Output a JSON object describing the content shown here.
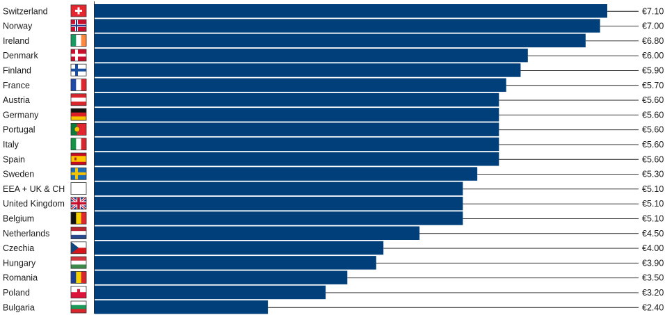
{
  "chart_data": {
    "type": "bar",
    "orientation": "horizontal",
    "categories": [
      "Switzerland",
      "Norway",
      "Ireland",
      "Denmark",
      "Finland",
      "France",
      "Austria",
      "Germany",
      "Portugal",
      "Italy",
      "Spain",
      "Sweden",
      "EEA + UK & CH",
      "United Kingdom",
      "Belgium",
      "Netherlands",
      "Czechia",
      "Hungary",
      "Romania",
      "Poland",
      "Bulgaria"
    ],
    "values": [
      7.1,
      7.0,
      6.8,
      6.0,
      5.9,
      5.7,
      5.6,
      5.6,
      5.6,
      5.6,
      5.6,
      5.3,
      5.1,
      5.1,
      5.1,
      4.5,
      4.0,
      3.9,
      3.5,
      3.2,
      2.4
    ],
    "value_labels": [
      "€7.10",
      "€7.00",
      "€6.80",
      "€6.00",
      "€5.90",
      "€5.70",
      "€5.60",
      "€5.60",
      "€5.60",
      "€5.60",
      "€5.60",
      "€5.30",
      "€5.10",
      "€5.10",
      "€5.10",
      "€4.50",
      "€4.00",
      "€3.90",
      "€3.50",
      "€3.20",
      "€2.40"
    ],
    "flag_icons": [
      "switzerland-flag-icon",
      "norway-flag-icon",
      "ireland-flag-icon",
      "denmark-flag-icon",
      "finland-flag-icon",
      "france-flag-icon",
      "austria-flag-icon",
      "germany-flag-icon",
      "portugal-flag-icon",
      "italy-flag-icon",
      "spain-flag-icon",
      "sweden-flag-icon",
      "eea-uk-ch-blank-icon",
      "united-kingdom-flag-icon",
      "belgium-flag-icon",
      "netherlands-flag-icon",
      "czechia-flag-icon",
      "hungary-flag-icon",
      "romania-flag-icon",
      "poland-flag-icon",
      "bulgaria-flag-icon"
    ],
    "title": "",
    "xlabel": "",
    "ylabel": "",
    "xlim": [
      0,
      7.1
    ],
    "grid": false,
    "legend": "none",
    "bar_color": "#003f7a",
    "leader_line_color": "#1a1a1a"
  }
}
